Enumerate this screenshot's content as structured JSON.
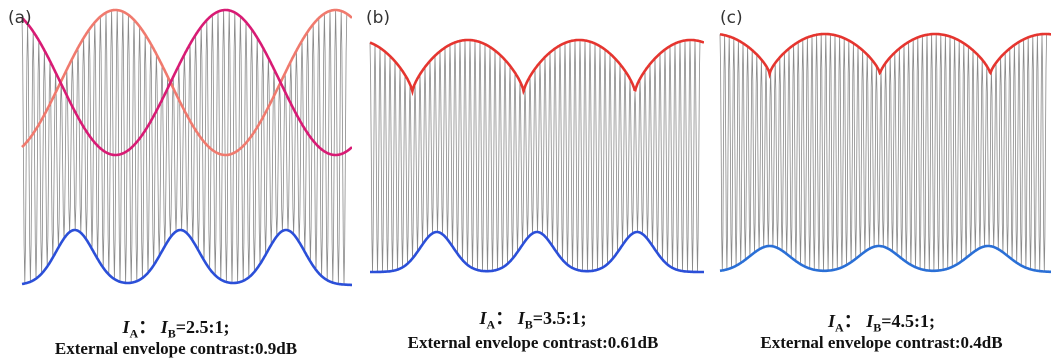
{
  "panels": [
    {
      "label": "(a)",
      "ratio": "=2.5:1;",
      "contrast": "External envelope contrast:0.9dB",
      "envelopes": [
        {
          "kind": "upper-sinusoid",
          "color": "#f07a6e",
          "level": "top-offset"
        },
        {
          "kind": "middle-sinusoid",
          "color": "#d81b74",
          "level": "mid"
        },
        {
          "kind": "lower-peaked",
          "color": "#2b4fd8",
          "level": "bottom"
        }
      ]
    },
    {
      "label": "(b)",
      "ratio": "=3.5:1;",
      "contrast": "External envelope contrast:0.61dB",
      "envelopes": [
        {
          "kind": "upper-scalloped",
          "color": "#e5352f"
        },
        {
          "kind": "lower-peaked",
          "color": "#2b4fd8"
        }
      ]
    },
    {
      "label": "(c)",
      "ratio": "=4.5:1;",
      "contrast": "External envelope contrast:0.4dB",
      "envelopes": [
        {
          "kind": "upper-scalloped",
          "color": "#e5352f"
        },
        {
          "kind": "lower-gentle",
          "color": "#2a6fd6"
        }
      ]
    }
  ],
  "symbols": {
    "current": "I",
    "sub_a": "A",
    "sub_b": "B",
    "separator": "："
  }
}
